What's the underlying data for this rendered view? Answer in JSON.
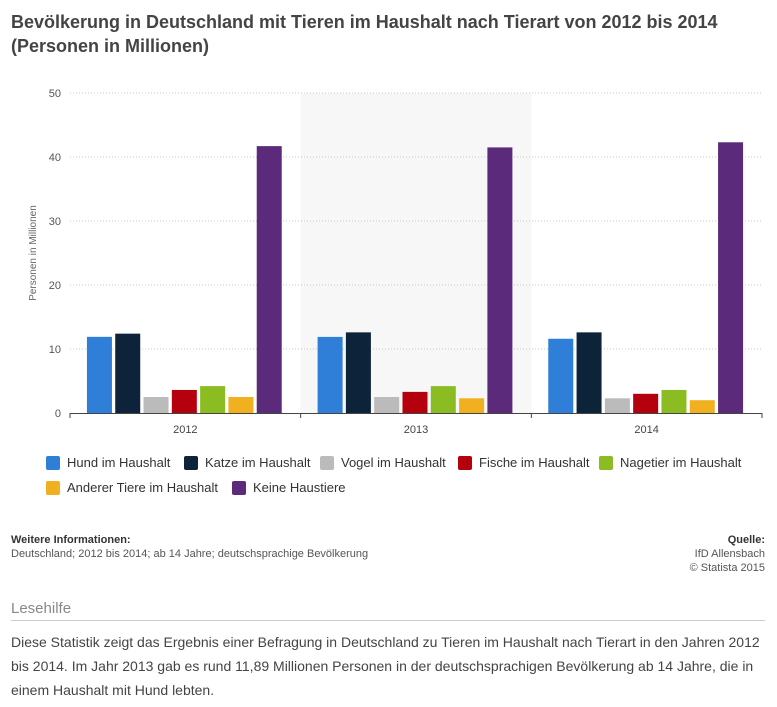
{
  "title": "Bevölkerung in Deutschland mit Tieren im Haushalt nach Tierart von 2012 bis 2014 (Personen in Millionen)",
  "chart_data": {
    "type": "bar",
    "categories": [
      "2012",
      "2013",
      "2014"
    ],
    "ylabel": "Personen in Millionen",
    "ylim": [
      0,
      50
    ],
    "yticks": [
      0,
      10,
      20,
      30,
      40,
      50
    ],
    "grid": true,
    "legend_position": "bottom",
    "series": [
      {
        "name": "Hund im Haushalt",
        "color": "#2f7ed8",
        "values": [
          11.9,
          11.89,
          11.6
        ]
      },
      {
        "name": "Katze im Haushalt",
        "color": "#0d233a",
        "values": [
          12.4,
          12.6,
          12.6
        ]
      },
      {
        "name": "Vogel im Haushalt",
        "color": "#bbbbbb",
        "values": [
          2.5,
          2.5,
          2.3
        ]
      },
      {
        "name": "Fische im Haushalt",
        "color": "#b5000d",
        "values": [
          3.6,
          3.3,
          3.0
        ]
      },
      {
        "name": "Nagetier im Haushalt",
        "color": "#8bbc21",
        "values": [
          4.2,
          4.2,
          3.6
        ]
      },
      {
        "name": "Anderer Tiere im Haushalt",
        "color": "#f0b020",
        "values": [
          2.5,
          2.3,
          2.0
        ]
      },
      {
        "name": "Keine Haustiere",
        "color": "#5b2a7a",
        "values": [
          41.7,
          41.5,
          42.3
        ]
      }
    ]
  },
  "info": {
    "label": "Weitere Informationen:",
    "text": "Deutschland; 2012 bis 2014; ab 14 Jahre; deutschsprachige Bevölkerung"
  },
  "source": {
    "label": "Quelle:",
    "line1": "IfD Allensbach",
    "line2": "© Statista 2015"
  },
  "lesehilfe": {
    "title": "Lesehilfe",
    "text": "Diese Statistik zeigt das Ergebnis einer Befragung in Deutschland zu Tieren im Haushalt nach Tierart in den Jahren 2012 bis 2014. Im Jahr 2013 gab es rund 11,89 Millionen Personen in der deutschsprachigen Bevölkerung ab 14 Jahre, die in einem Haushalt mit Hund lebten."
  }
}
